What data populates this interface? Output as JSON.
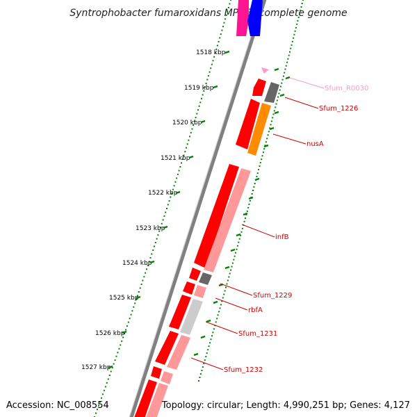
{
  "title": "Syntrophobacter fumaroxidans MPOB, complete genome",
  "footer": {
    "accession": "Accession: NC_008554",
    "topology": "Topology: circular; Length: 4,990,251 bp; Genes: 4,127"
  },
  "kbp_ticks": [
    "1518 kbp",
    "1519 kbp",
    "1520 kbp",
    "1521 kbp",
    "1522 kbp",
    "1523 kbp",
    "1524 kbp",
    "1525 kbp",
    "1526 kbp",
    "1527 kbp"
  ],
  "colors": {
    "cds": "#ff0000",
    "cds_dark": "#b30000",
    "rna": "#ff9999",
    "trna": "#ff99cc",
    "gray": "#666666",
    "light_gray": "#cccccc",
    "orange": "#ff8c00",
    "magenta": "#ff1493",
    "blue": "#0000ff",
    "dots": "#008000",
    "backbone": "#808080"
  },
  "gene_labels": [
    {
      "text": "Sfum_R0030",
      "color": "#ff99cc"
    },
    {
      "text": "Sfum_1226",
      "color": "#cc0000"
    },
    {
      "text": "nusA",
      "color": "#cc0000"
    },
    {
      "text": "infB",
      "color": "#cc0000"
    },
    {
      "text": "Sfum_1229",
      "color": "#cc0000"
    },
    {
      "text": "rbfA",
      "color": "#cc0000"
    },
    {
      "text": "Sfum_1231",
      "color": "#cc0000"
    },
    {
      "text": "Sfum_1232",
      "color": "#cc0000"
    }
  ]
}
